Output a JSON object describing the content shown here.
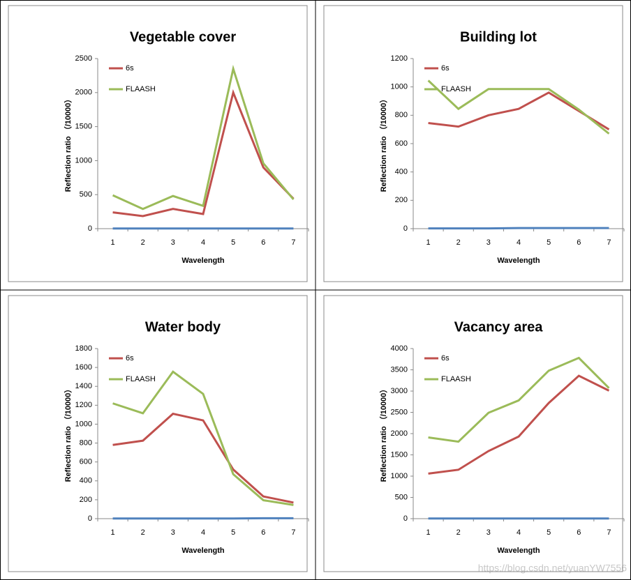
{
  "chart_data": [
    {
      "type": "line",
      "title": "Vegetable cover",
      "x_label": "Wavelength",
      "y_label": "Reflection ratio （/10000）",
      "categories": [
        "1",
        "2",
        "3",
        "4",
        "5",
        "6",
        "7"
      ],
      "ylim": [
        0,
        2500
      ],
      "yticks": [
        0,
        500,
        1000,
        1500,
        2000,
        2500
      ],
      "legend": "upper left",
      "series": [
        {
          "name": "6s",
          "color": "#c0504d",
          "values": [
            240,
            185,
            290,
            215,
            2000,
            900,
            440
          ]
        },
        {
          "name": "FLAASH",
          "color": "#9bbb59",
          "values": [
            490,
            290,
            480,
            335,
            2350,
            960,
            430
          ]
        },
        {
          "color": "#4f81bd",
          "values": [
            3,
            3,
            3,
            3,
            3,
            3,
            3
          ]
        }
      ]
    },
    {
      "type": "line",
      "title": "Building lot",
      "x_label": "Wavelength",
      "y_label": "Reflection ratio （/10000）",
      "categories": [
        "1",
        "2",
        "3",
        "4",
        "5",
        "6",
        "7"
      ],
      "ylim": [
        0,
        1200
      ],
      "yticks": [
        0,
        200,
        400,
        600,
        800,
        1000,
        1200
      ],
      "legend": "upper left",
      "series": [
        {
          "name": "6s",
          "color": "#c0504d",
          "values": [
            745,
            720,
            800,
            845,
            960,
            830,
            700
          ]
        },
        {
          "name": "FLAASH",
          "color": "#9bbb59",
          "values": [
            1045,
            845,
            985,
            985,
            985,
            840,
            670
          ]
        },
        {
          "color": "#4f81bd",
          "values": [
            2,
            2,
            2,
            4,
            4,
            4,
            4
          ]
        }
      ]
    },
    {
      "type": "line",
      "title": "Water body",
      "x_label": "Wavelength",
      "y_label": "Reflection ratio （/10000）",
      "categories": [
        "1",
        "2",
        "3",
        "4",
        "5",
        "6",
        "7"
      ],
      "ylim": [
        0,
        1800
      ],
      "yticks": [
        0,
        200,
        400,
        600,
        800,
        1000,
        1200,
        1400,
        1600,
        1800
      ],
      "legend": "upper left",
      "series": [
        {
          "name": "6s",
          "color": "#c0504d",
          "values": [
            780,
            825,
            1110,
            1040,
            520,
            235,
            170
          ]
        },
        {
          "name": "FLAASH",
          "color": "#9bbb59",
          "values": [
            1220,
            1115,
            1555,
            1320,
            470,
            195,
            145
          ]
        },
        {
          "color": "#4f81bd",
          "values": [
            2,
            2,
            2,
            2,
            2,
            5,
            5
          ]
        }
      ]
    },
    {
      "type": "line",
      "title": "Vacancy area",
      "x_label": "Wavelength",
      "y_label": "Reflection ratio （/10000）",
      "categories": [
        "1",
        "2",
        "3",
        "4",
        "5",
        "6",
        "7"
      ],
      "ylim": [
        0,
        4000
      ],
      "yticks": [
        0,
        500,
        1000,
        1500,
        2000,
        2500,
        3000,
        3500,
        4000
      ],
      "legend": "upper left",
      "series": [
        {
          "name": "6s",
          "color": "#c0504d",
          "values": [
            1060,
            1150,
            1590,
            1930,
            2720,
            3360,
            3010
          ]
        },
        {
          "name": "FLAASH",
          "color": "#9bbb59",
          "values": [
            1910,
            1810,
            2490,
            2780,
            3480,
            3780,
            3070
          ]
        },
        {
          "color": "#4f81bd",
          "values": [
            5,
            5,
            5,
            5,
            5,
            5,
            5
          ]
        }
      ]
    }
  ],
  "watermark": "https://blog.csdn.net/yuanYW7556"
}
